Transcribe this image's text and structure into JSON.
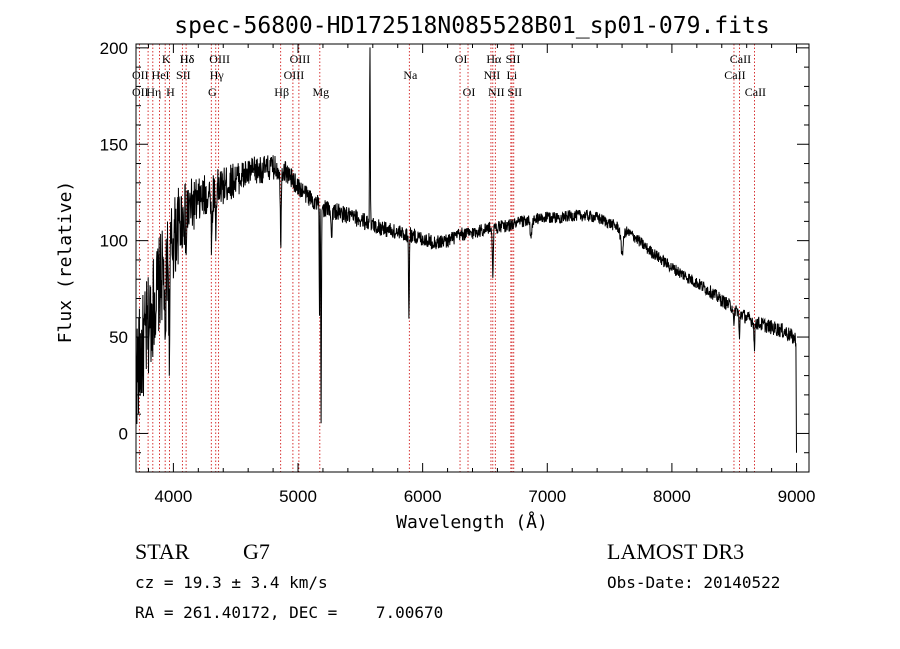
{
  "chart_data": {
    "type": "line",
    "title": "spec-56800-HD172518N085528B01_sp01-079.fits",
    "xlabel": "Wavelength (Å)",
    "ylabel": "Flux (relative)",
    "xlim": [
      3700,
      9100
    ],
    "ylim": [
      -20,
      202
    ],
    "xticks": [
      4000,
      5000,
      6000,
      7000,
      8000,
      9000
    ],
    "yticks": [
      0,
      50,
      100,
      150,
      200
    ],
    "line_color": "#000000",
    "marker_color": "#cc0000",
    "continuum": [
      [
        3700,
        30
      ],
      [
        3780,
        50
      ],
      [
        3850,
        70
      ],
      [
        3950,
        90
      ],
      [
        4050,
        110
      ],
      [
        4150,
        118
      ],
      [
        4300,
        125
      ],
      [
        4400,
        128
      ],
      [
        4500,
        132
      ],
      [
        4650,
        136
      ],
      [
        4800,
        138
      ],
      [
        4900,
        136
      ],
      [
        5000,
        128
      ],
      [
        5100,
        122
      ],
      [
        5200,
        117
      ],
      [
        5300,
        115
      ],
      [
        5400,
        113
      ],
      [
        5500,
        111
      ],
      [
        5600,
        108
      ],
      [
        5700,
        106
      ],
      [
        5800,
        104
      ],
      [
        5900,
        103
      ],
      [
        6000,
        101
      ],
      [
        6100,
        99
      ],
      [
        6200,
        100
      ],
      [
        6300,
        103
      ],
      [
        6400,
        104
      ],
      [
        6500,
        106
      ],
      [
        6600,
        107
      ],
      [
        6700,
        108
      ],
      [
        6800,
        110
      ],
      [
        6900,
        111
      ],
      [
        7000,
        112
      ],
      [
        7100,
        112
      ],
      [
        7200,
        113
      ],
      [
        7300,
        113
      ],
      [
        7400,
        112
      ],
      [
        7500,
        109
      ],
      [
        7600,
        106
      ],
      [
        7700,
        102
      ],
      [
        7800,
        96
      ],
      [
        7900,
        91
      ],
      [
        8000,
        86
      ],
      [
        8100,
        82
      ],
      [
        8200,
        78
      ],
      [
        8300,
        74
      ],
      [
        8400,
        69
      ],
      [
        8500,
        65
      ],
      [
        8600,
        60
      ],
      [
        8700,
        57
      ],
      [
        8800,
        55
      ],
      [
        8900,
        53
      ],
      [
        8990,
        49
      ]
    ],
    "noise": [
      [
        3700,
        30
      ],
      [
        4000,
        22
      ],
      [
        4200,
        12
      ],
      [
        4600,
        8
      ],
      [
        5000,
        5
      ],
      [
        6000,
        4
      ],
      [
        7000,
        3
      ],
      [
        8000,
        3
      ],
      [
        9000,
        4
      ]
    ],
    "absorption": [
      [
        3934,
        55,
        6
      ],
      [
        3968,
        45,
        6
      ],
      [
        4102,
        25,
        4
      ],
      [
        4308,
        28,
        6
      ],
      [
        4340,
        25,
        4
      ],
      [
        4861,
        40,
        5
      ],
      [
        5172,
        60,
        3
      ],
      [
        5185,
        110,
        4
      ],
      [
        5270,
        15,
        5
      ],
      [
        5890,
        45,
        4
      ],
      [
        6563,
        25,
        5
      ],
      [
        6870,
        10,
        10
      ],
      [
        7600,
        12,
        15
      ],
      [
        8498,
        12,
        5
      ],
      [
        8542,
        15,
        5
      ],
      [
        8662,
        15,
        5
      ]
    ],
    "emission": [
      [
        5577,
        95,
        4
      ]
    ],
    "end_point": [
      9000,
      -10
    ],
    "line_markers": [
      {
        "label": "Hδ",
        "x": 4102,
        "row": 0
      },
      {
        "label": "K",
        "x": 3934,
        "row": 0
      },
      {
        "label": "Hδ",
        "x": 4102,
        "row": 0
      },
      {
        "label": "OIII",
        "x": 4363,
        "row": 0
      },
      {
        "label": "OIII",
        "x": 5007,
        "row": 0
      },
      {
        "label": "OI",
        "x": 6300,
        "row": 0
      },
      {
        "label": "Hα",
        "x": 6563,
        "row": 0
      },
      {
        "label": "SII",
        "x": 6717,
        "row": 0
      },
      {
        "label": "CaII",
        "x": 8542,
        "row": 0
      },
      {
        "label": "OII",
        "x": 3727,
        "row": 1
      },
      {
        "label": "HeI",
        "x": 3889,
        "row": 1
      },
      {
        "label": "SII",
        "x": 4072,
        "row": 1
      },
      {
        "label": "Hγ",
        "x": 4340,
        "row": 1
      },
      {
        "label": "OIII",
        "x": 4959,
        "row": 1
      },
      {
        "label": "Na",
        "x": 5893,
        "row": 1
      },
      {
        "label": "NII",
        "x": 6548,
        "row": 1
      },
      {
        "label": "Li",
        "x": 6708,
        "row": 1
      },
      {
        "label": "CaII",
        "x": 8498,
        "row": 1
      },
      {
        "label": "OII",
        "x": 3727,
        "row": 2
      },
      {
        "label": "Hη",
        "x": 3835,
        "row": 2
      },
      {
        "label": "H",
        "x": 3968,
        "row": 2
      },
      {
        "label": "G",
        "x": 4304,
        "row": 2
      },
      {
        "label": "Hβ",
        "x": 4861,
        "row": 2
      },
      {
        "label": "Mg",
        "x": 5175,
        "row": 2
      },
      {
        "label": "OI",
        "x": 6364,
        "row": 2
      },
      {
        "label": "NII",
        "x": 6583,
        "row": 2
      },
      {
        "label": "SII",
        "x": 6731,
        "row": 2
      },
      {
        "label": "CaII",
        "x": 8662,
        "row": 2
      }
    ],
    "marker_lines": [
      3727,
      3797,
      3835,
      3889,
      3934,
      3968,
      4072,
      4102,
      4304,
      4340,
      4363,
      4861,
      4959,
      5007,
      5175,
      5893,
      6300,
      6364,
      6548,
      6563,
      6583,
      6708,
      6717,
      6731,
      8498,
      8542,
      8662
    ]
  },
  "info": {
    "object_class": "STAR",
    "subclass": "G7",
    "survey": "LAMOST DR3",
    "cz": "cz = 19.3 ± 3.4 km/s",
    "obs_date": "Obs-Date: 20140522",
    "coords": "RA = 261.40172, DEC =    7.00670"
  }
}
